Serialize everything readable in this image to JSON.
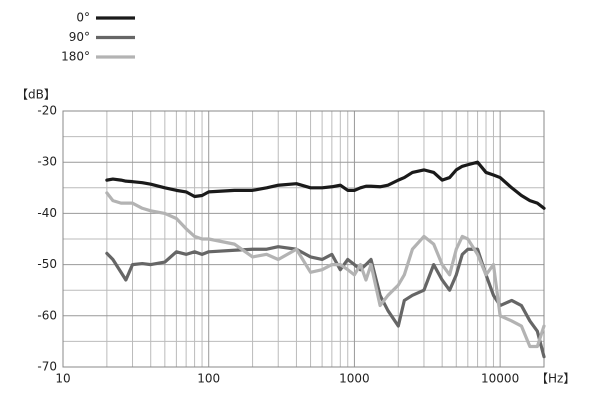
{
  "chart_data": {
    "type": "line",
    "y_label": "【dB】",
    "x_label": "【Hz】",
    "log_x": true,
    "grid": true,
    "xlim": [
      10,
      20000
    ],
    "xticks": [
      10,
      100,
      1000,
      10000
    ],
    "x_minor_ticks": [
      20,
      30,
      40,
      50,
      60,
      70,
      80,
      90,
      200,
      300,
      400,
      500,
      600,
      700,
      800,
      900,
      2000,
      3000,
      4000,
      5000,
      6000,
      7000,
      8000,
      9000,
      20000
    ],
    "ylim": [
      -70,
      -20
    ],
    "yticks": [
      -70,
      -60,
      -50,
      -40,
      -30,
      -20
    ],
    "y_minor_ticks": [
      -65,
      -55,
      -45,
      -35,
      -25
    ],
    "x": [
      20,
      22,
      25,
      27,
      30,
      35,
      40,
      50,
      60,
      70,
      80,
      90,
      100,
      150,
      200,
      250,
      300,
      400,
      500,
      600,
      700,
      800,
      900,
      1000,
      1100,
      1200,
      1300,
      1500,
      1700,
      2000,
      2200,
      2500,
      3000,
      3500,
      4000,
      4500,
      5000,
      5500,
      6000,
      7000,
      8000,
      9000,
      10000,
      12000,
      14000,
      16000,
      18000,
      20000
    ],
    "series": [
      {
        "name": "0°",
        "color": "#1a1a1a",
        "values": [
          -33.5,
          -33.3,
          -33.5,
          -33.7,
          -33.8,
          -34,
          -34.3,
          -35,
          -35.5,
          -35.8,
          -36.7,
          -36.5,
          -35.8,
          -35.5,
          -35.5,
          -35,
          -34.5,
          -34.2,
          -35,
          -35,
          -34.8,
          -34.5,
          -35.5,
          -35.5,
          -35,
          -34.7,
          -34.7,
          -34.8,
          -34.5,
          -33.5,
          -33,
          -32,
          -31.5,
          -32,
          -33.5,
          -33,
          -31.5,
          -30.8,
          -30.5,
          -30,
          -32,
          -32.5,
          -33,
          -35,
          -36.5,
          -37.5,
          -38,
          -39
        ]
      },
      {
        "name": "90°",
        "color": "#666666",
        "values": [
          -47.8,
          -49,
          -51.5,
          -53,
          -50,
          -49.8,
          -50,
          -49.5,
          -47.5,
          -48,
          -47.5,
          -48,
          -47.5,
          -47.2,
          -47,
          -47,
          -46.5,
          -47,
          -48.5,
          -49,
          -48,
          -51,
          -49,
          -50,
          -51,
          -50,
          -49,
          -56,
          -59,
          -62,
          -57,
          -56,
          -55,
          -50,
          -53,
          -55,
          -52,
          -48,
          -47,
          -47,
          -52,
          -56,
          -58,
          -57,
          -58,
          -61,
          -63,
          -68
        ]
      },
      {
        "name": "180°",
        "color": "#b3b3b3",
        "values": [
          -36,
          -37.5,
          -38,
          -38,
          -38,
          -39,
          -39.5,
          -40,
          -41,
          -43,
          -44.5,
          -45,
          -45,
          -46,
          -48.5,
          -48,
          -49,
          -47,
          -51.5,
          -51,
          -50,
          -50,
          -51,
          -52,
          -50,
          -53,
          -50,
          -58,
          -56,
          -54,
          -52,
          -47,
          -44.5,
          -46,
          -50,
          -52,
          -47,
          -44.5,
          -45,
          -48,
          -52,
          -50,
          -60,
          -61,
          -62,
          -66,
          -66,
          -62
        ]
      }
    ]
  }
}
